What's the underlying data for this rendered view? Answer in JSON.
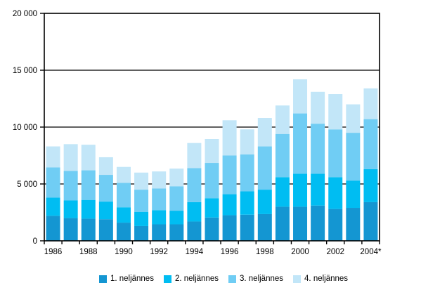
{
  "chart_data": {
    "type": "bar",
    "stacked": true,
    "title": "",
    "xlabel": "",
    "ylabel": "",
    "categories": [
      "1986",
      "1987",
      "1988",
      "1989",
      "1990",
      "1991",
      "1992",
      "1993",
      "1994",
      "1995",
      "1996",
      "1997",
      "1998",
      "1999",
      "2000",
      "2001",
      "2002",
      "2003",
      "2004*"
    ],
    "x_label_every": 2,
    "series": [
      {
        "name": "1. neljännes",
        "color": "#1496d2",
        "values": [
          2200,
          2000,
          1950,
          1900,
          1600,
          1300,
          1450,
          1450,
          1700,
          2050,
          2250,
          2300,
          2350,
          3000,
          3000,
          3100,
          2800,
          2900,
          3400
        ]
      },
      {
        "name": "2. neljännes",
        "color": "#00bdf2",
        "values": [
          1600,
          1550,
          1650,
          1550,
          1350,
          1250,
          1250,
          1200,
          1700,
          1700,
          1850,
          2050,
          2150,
          2600,
          2900,
          2800,
          2800,
          2400,
          2900
        ]
      },
      {
        "name": "3. neljännes",
        "color": "#70cdf4",
        "values": [
          2650,
          2600,
          2600,
          2350,
          2150,
          1950,
          1900,
          2150,
          3000,
          3100,
          3400,
          3250,
          3800,
          3800,
          5300,
          4400,
          4200,
          4200,
          4400
        ]
      },
      {
        "name": "4. neljännes",
        "color": "#c2e6f8",
        "values": [
          1850,
          2350,
          2250,
          1550,
          1400,
          1500,
          1500,
          1550,
          2200,
          2100,
          3100,
          2200,
          2500,
          2500,
          3000,
          2800,
          3100,
          2500,
          2700
        ]
      }
    ],
    "ylim": [
      0,
      20000
    ],
    "y_ticks": [
      0,
      5000,
      10000,
      15000,
      20000
    ],
    "y_tick_labels": [
      "0",
      "5 000",
      "10 000",
      "15 000",
      "20 000"
    ],
    "grid": true,
    "grid_color": "#000000",
    "axis_color": "#000000",
    "legend_position": "bottom"
  }
}
